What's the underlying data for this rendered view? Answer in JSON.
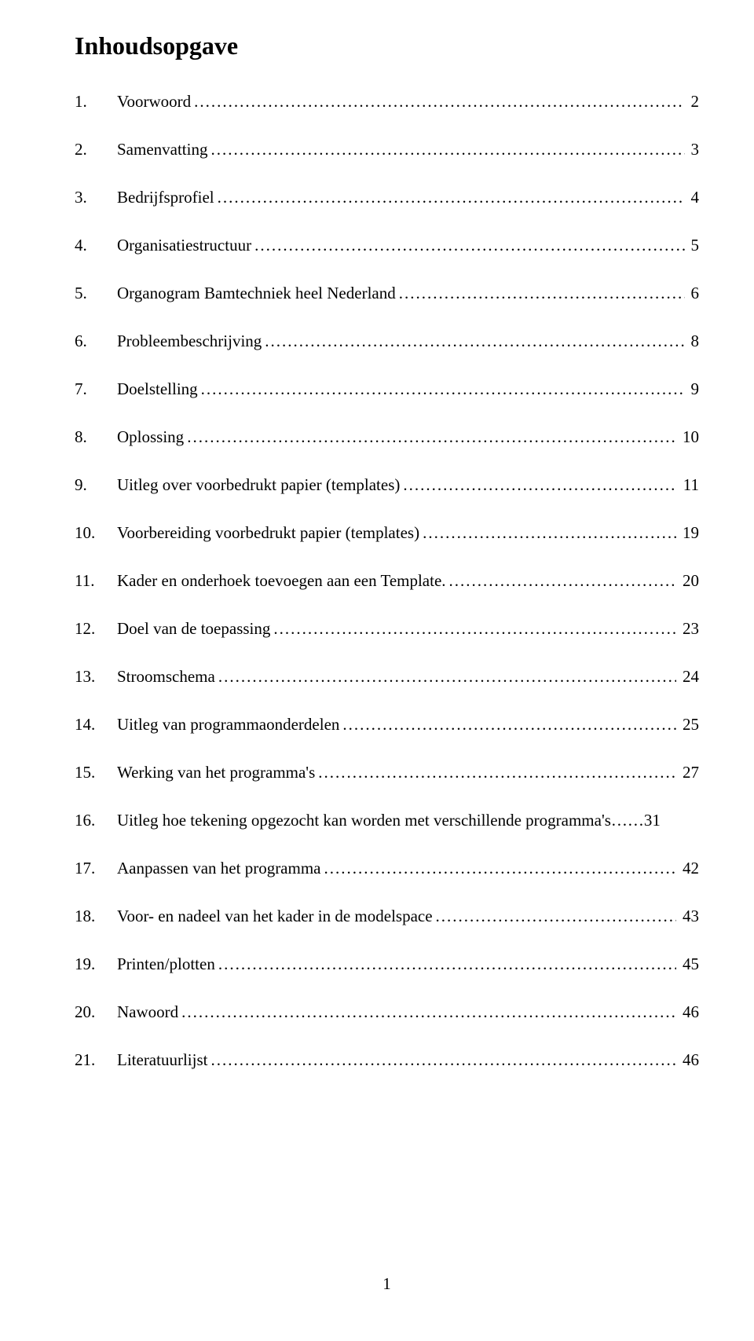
{
  "title": "Inhoudsopgave",
  "entries": [
    {
      "num": "1.",
      "label": "Voorwoord",
      "page": "2",
      "leader": true
    },
    {
      "num": "2.",
      "label": "Samenvatting",
      "page": "3",
      "leader": true
    },
    {
      "num": "3.",
      "label": "Bedrijfsprofiel",
      "page": "4",
      "leader": true
    },
    {
      "num": "4.",
      "label": "Organisatiestructuur",
      "page": "5",
      "leader": true
    },
    {
      "num": "5.",
      "label": "Organogram Bamtechniek heel Nederland",
      "page": "6",
      "leader": true
    },
    {
      "num": "6.",
      "label": "Probleembeschrijving",
      "page": "8",
      "leader": true
    },
    {
      "num": "7.",
      "label": "Doelstelling",
      "page": "9",
      "leader": true
    },
    {
      "num": "8.",
      "label": "Oplossing",
      "page": "10",
      "leader": true
    },
    {
      "num": "9.",
      "label": "Uitleg over voorbedrukt papier (templates)",
      "page": "11",
      "leader": true
    },
    {
      "num": "10.",
      "label": "Voorbereiding voorbedrukt papier (templates)",
      "page": "19",
      "leader": true
    },
    {
      "num": "11.",
      "label": "Kader en onderhoek toevoegen aan een Template.",
      "page": "20",
      "leader": true
    },
    {
      "num": "12.",
      "label": "Doel van de toepassing",
      "page": "23",
      "leader": true
    },
    {
      "num": "13.",
      "label": "Stroomschema",
      "page": "24",
      "leader": true
    },
    {
      "num": "14.",
      "label": "Uitleg van programmaonderdelen",
      "page": "25",
      "leader": true
    },
    {
      "num": "15.",
      "label": "Werking van het programma's",
      "page": "27",
      "leader": true
    },
    {
      "num": "16.",
      "label": "Uitleg hoe tekening opgezocht kan worden met verschillende programma's……31",
      "page": "",
      "leader": false
    },
    {
      "num": "17.",
      "label": "Aanpassen van het programma",
      "page": "42",
      "leader": true
    },
    {
      "num": "18.",
      "label": "Voor- en nadeel van het kader in de modelspace",
      "page": "43",
      "leader": true
    },
    {
      "num": "19.",
      "label": "Printen/plotten",
      "page": "45",
      "leader": true
    },
    {
      "num": "20.",
      "label": "Nawoord",
      "page": "46",
      "leader": true
    },
    {
      "num": "21.",
      "label": "Literatuurlijst",
      "page": "46",
      "leader": true
    }
  ],
  "footer_page": "1",
  "colors": {
    "text": "#000000",
    "background": "#ffffff"
  },
  "fontsize": {
    "title": 32,
    "body": 21
  }
}
